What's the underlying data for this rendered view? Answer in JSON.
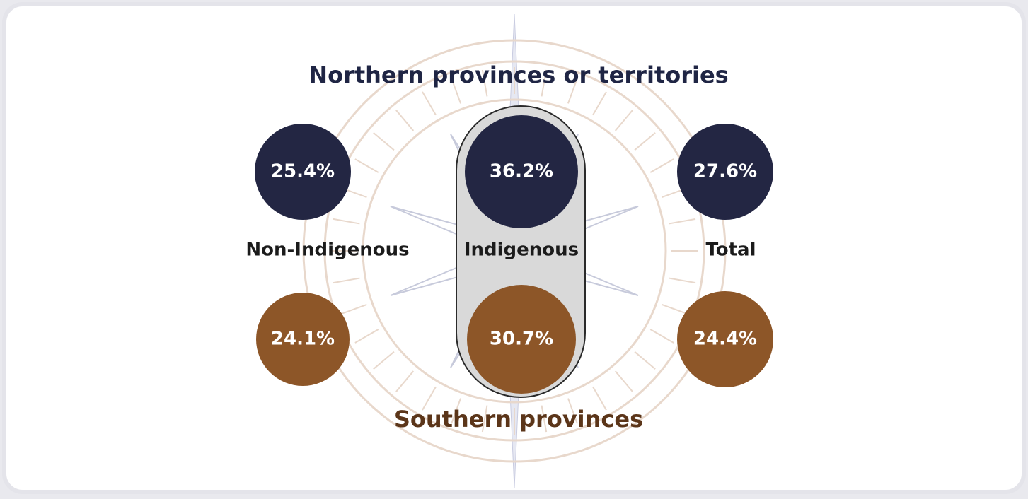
{
  "header": {
    "north_title": "Northern provinces or territories",
    "south_title": "Southern provinces"
  },
  "groups": [
    {
      "label": "Non-Indigenous",
      "north": "25.4%",
      "south": "24.1%"
    },
    {
      "label": "Indigenous",
      "north": "36.2%",
      "south": "30.7%"
    },
    {
      "label": "Total",
      "north": "27.6%",
      "south": "24.4%"
    }
  ]
}
